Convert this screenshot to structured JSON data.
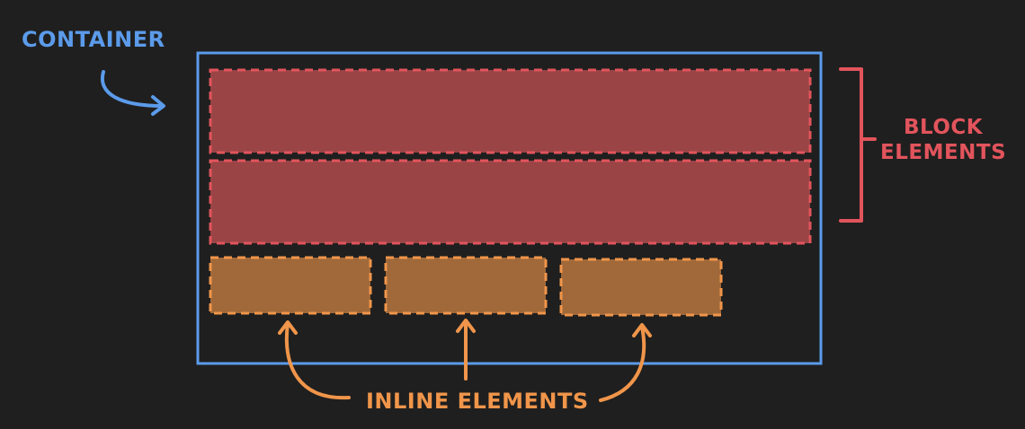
{
  "labels": {
    "container": "CONTAINER",
    "block_line1": "BLOCK",
    "block_line2": "ELEMENTS",
    "inline": "INLINE ELEMENTS"
  },
  "colors": {
    "background": "#1f1f1f",
    "container": "#5b9bea",
    "block_fill": "#9a4446",
    "block_border": "#e2545c",
    "inline_fill": "#a1693a",
    "inline_border": "#f0954a"
  }
}
